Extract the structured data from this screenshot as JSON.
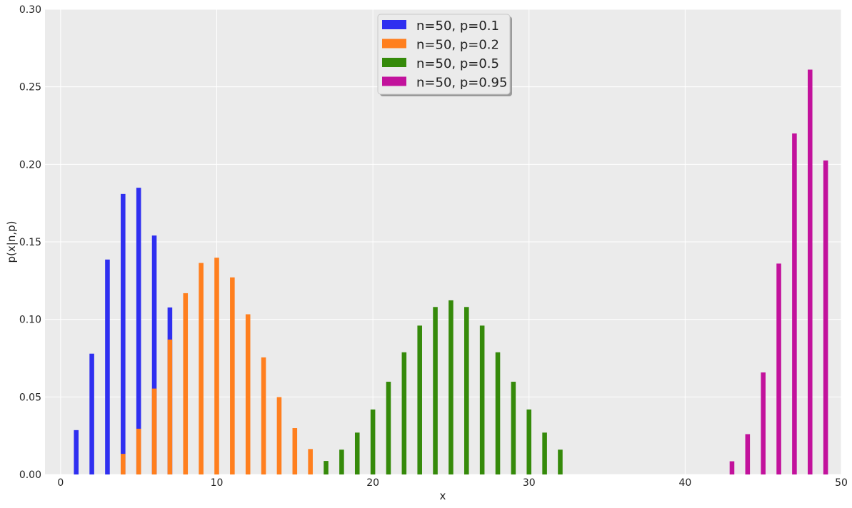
{
  "chart_data": {
    "type": "bar",
    "xlabel": "x",
    "ylabel": "p(x|n,p)",
    "xlim": [
      -1,
      50
    ],
    "ylim": [
      0,
      0.3
    ],
    "xticks": [
      0,
      10,
      20,
      30,
      40,
      50
    ],
    "xtick_labels": [
      "0",
      "10",
      "20",
      "30",
      "40",
      "50"
    ],
    "yticks": [
      0,
      0.05,
      0.1,
      0.15,
      0.2,
      0.25,
      0.3
    ],
    "ytick_labels": [
      "0.00",
      "0.05",
      "0.10",
      "0.15",
      "0.20",
      "0.25",
      "0.30"
    ],
    "grid": true,
    "legend_position": "top-center",
    "series": [
      {
        "name": "n=50, p=0.1",
        "color": "#2f2ff0",
        "x": [
          1,
          2,
          3,
          4,
          5,
          6,
          7
        ],
        "values": [
          0.0286,
          0.0779,
          0.1386,
          0.1809,
          0.1849,
          0.1541,
          0.1077
        ]
      },
      {
        "name": "n=50, p=0.2",
        "color": "#ff7f1e",
        "x": [
          4,
          5,
          6,
          7,
          8,
          9,
          10,
          11,
          12,
          13,
          14,
          15,
          16
        ],
        "values": [
          0.0133,
          0.0295,
          0.0554,
          0.087,
          0.1169,
          0.1364,
          0.1398,
          0.1271,
          0.1033,
          0.0755,
          0.0499,
          0.0299,
          0.0164
        ]
      },
      {
        "name": "n=50, p=0.5",
        "color": "#358a0a",
        "x": [
          17,
          18,
          19,
          20,
          21,
          22,
          23,
          24,
          25,
          26,
          27,
          28,
          29,
          30,
          31,
          32
        ],
        "values": [
          0.0087,
          0.016,
          0.027,
          0.0419,
          0.0598,
          0.0788,
          0.096,
          0.108,
          0.1123,
          0.108,
          0.096,
          0.0788,
          0.0598,
          0.0419,
          0.027,
          0.016
        ]
      },
      {
        "name": "n=50, p=0.95",
        "color": "#c2129c",
        "x": [
          43,
          44,
          45,
          46,
          47,
          48,
          49
        ],
        "values": [
          0.0085,
          0.026,
          0.0658,
          0.136,
          0.2199,
          0.2611,
          0.2025
        ]
      }
    ]
  }
}
